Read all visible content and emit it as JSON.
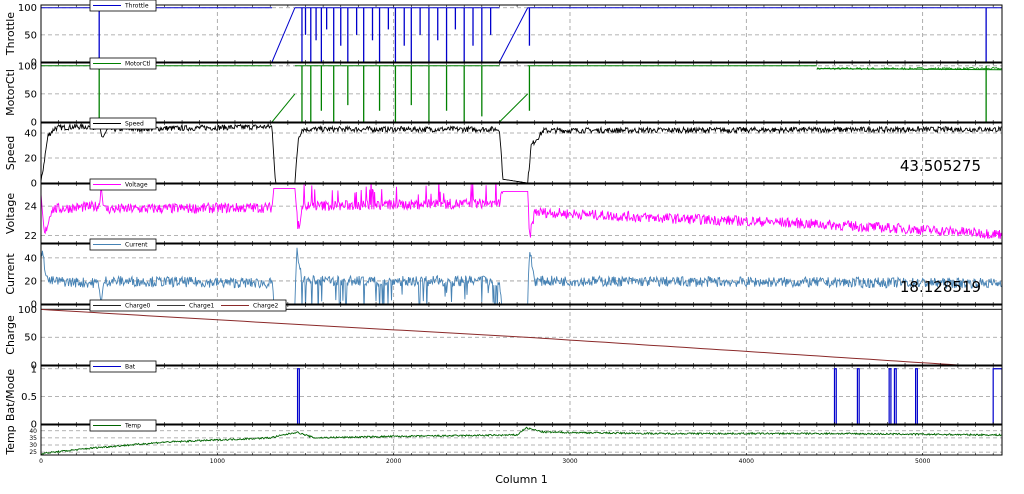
{
  "chart_data": {
    "type": "line",
    "xlabel": "Column 1",
    "xlim": [
      0,
      5450
    ],
    "xticks": [
      0,
      1000,
      2000,
      3000,
      4000,
      5000
    ],
    "xtick_labels": [
      "0",
      "1000",
      "2000",
      "3000",
      "4000",
      "5000"
    ],
    "grid": true,
    "panels": [
      {
        "id": "throttle",
        "ylabel": "Throttle",
        "ylim": [
          0,
          105
        ],
        "yticks": [
          0,
          50,
          100
        ],
        "ytick_labels": [
          "0",
          "50",
          "100"
        ],
        "legend": [
          "Throttle"
        ],
        "legend_position": "top-left",
        "series": [
          {
            "name": "Throttle",
            "color": "#0000cc",
            "baseline": 100,
            "segments": [
              {
                "x": [
                  0,
                  1310
                ],
                "y": [
                  100,
                  100
                ]
              },
              {
                "x": [
                  1310,
                  1440
                ],
                "y": [
                  0,
                  100
                ]
              },
              {
                "x": [
                  1440,
                  2600
                ],
                "y": [
                  100,
                  100
                ]
              },
              {
                "x": [
                  2600,
                  2760
                ],
                "y": [
                  0,
                  100
                ]
              },
              {
                "x": [
                  2760,
                  5450
                ],
                "y": [
                  100,
                  100
                ]
              }
            ],
            "dips": [
              {
                "x": 330,
                "y": 0
              },
              {
                "x": 1480,
                "y": 0
              },
              {
                "x": 1500,
                "y": 50
              },
              {
                "x": 1530,
                "y": 0
              },
              {
                "x": 1560,
                "y": 40
              },
              {
                "x": 1590,
                "y": 0
              },
              {
                "x": 1620,
                "y": 60
              },
              {
                "x": 1660,
                "y": 0
              },
              {
                "x": 1700,
                "y": 30
              },
              {
                "x": 1740,
                "y": 0
              },
              {
                "x": 1790,
                "y": 50
              },
              {
                "x": 1830,
                "y": 0
              },
              {
                "x": 1880,
                "y": 40
              },
              {
                "x": 1920,
                "y": 0
              },
              {
                "x": 1970,
                "y": 60
              },
              {
                "x": 2010,
                "y": 0
              },
              {
                "x": 2060,
                "y": 30
              },
              {
                "x": 2100,
                "y": 0
              },
              {
                "x": 2150,
                "y": 50
              },
              {
                "x": 2200,
                "y": 0
              },
              {
                "x": 2250,
                "y": 40
              },
              {
                "x": 2300,
                "y": 0
              },
              {
                "x": 2350,
                "y": 60
              },
              {
                "x": 2400,
                "y": 0
              },
              {
                "x": 2450,
                "y": 30
              },
              {
                "x": 2500,
                "y": 0
              },
              {
                "x": 2550,
                "y": 50
              },
              {
                "x": 2770,
                "y": 30
              },
              {
                "x": 5360,
                "y": 0
              }
            ]
          }
        ]
      },
      {
        "id": "motorctl",
        "ylabel": "MotorCtl",
        "ylim": [
          0,
          105
        ],
        "yticks": [
          0,
          50,
          100
        ],
        "ytick_labels": [
          "0",
          "50",
          "100"
        ],
        "legend": [
          "MotorCtl"
        ],
        "legend_position": "top-left",
        "series": [
          {
            "name": "MotorCtl",
            "color": "#008000",
            "baseline": 100,
            "segments": [
              {
                "x": [
                  0,
                  1310
                ],
                "y": [
                  100,
                  100
                ]
              },
              {
                "x": [
                  1310,
                  1440
                ],
                "y": [
                  0,
                  50
                ]
              },
              {
                "x": [
                  1440,
                  2600
                ],
                "y": [
                  100,
                  100
                ]
              },
              {
                "x": [
                  2600,
                  2760
                ],
                "y": [
                  0,
                  50
                ]
              },
              {
                "x": [
                  2760,
                  4400
                ],
                "y": [
                  100,
                  100
                ]
              },
              {
                "x": [
                  4400,
                  5450
                ],
                "y": [
                  95,
                  93
                ]
              }
            ],
            "dips": [
              {
                "x": 330,
                "y": 0
              },
              {
                "x": 1480,
                "y": 0
              },
              {
                "x": 1530,
                "y": 0
              },
              {
                "x": 1590,
                "y": 20
              },
              {
                "x": 1660,
                "y": 0
              },
              {
                "x": 1740,
                "y": 30
              },
              {
                "x": 1830,
                "y": 0
              },
              {
                "x": 1920,
                "y": 20
              },
              {
                "x": 2010,
                "y": 0
              },
              {
                "x": 2100,
                "y": 30
              },
              {
                "x": 2200,
                "y": 0
              },
              {
                "x": 2300,
                "y": 20
              },
              {
                "x": 2400,
                "y": 0
              },
              {
                "x": 2500,
                "y": 10
              },
              {
                "x": 2770,
                "y": 20
              },
              {
                "x": 5360,
                "y": 0
              }
            ]
          }
        ]
      },
      {
        "id": "speed",
        "ylabel": "Speed",
        "ylim": [
          0,
          48
        ],
        "yticks": [
          0,
          20,
          40
        ],
        "ytick_labels": [
          "0",
          "20",
          "40"
        ],
        "legend": [
          "Speed"
        ],
        "legend_position": "top-left",
        "annotation": "43.505275",
        "series": [
          {
            "name": "Speed",
            "color": "#000000",
            "baseline": 43,
            "points": [
              [
                0,
                0
              ],
              [
                40,
                38
              ],
              [
                80,
                44
              ],
              [
                200,
                45
              ],
              [
                330,
                45
              ],
              [
                345,
                36
              ],
              [
                380,
                43
              ],
              [
                1310,
                45
              ],
              [
                1330,
                0
              ],
              [
                1440,
                0
              ],
              [
                1460,
                36
              ],
              [
                1480,
                43
              ],
              [
                2600,
                43
              ],
              [
                2620,
                3
              ],
              [
                2760,
                0
              ],
              [
                2780,
                30
              ],
              [
                2850,
                42
              ],
              [
                5450,
                43
              ]
            ]
          }
        ]
      },
      {
        "id": "voltage",
        "ylabel": "Voltage",
        "ylim": [
          21.5,
          25.5
        ],
        "yticks": [
          22,
          24
        ],
        "ytick_labels": [
          "22",
          "24"
        ],
        "legend": [
          "Voltage"
        ],
        "legend_position": "top-left",
        "series": [
          {
            "name": "Voltage",
            "color": "#ff00ff",
            "points": [
              [
                0,
                24.5
              ],
              [
                20,
                22
              ],
              [
                60,
                23.8
              ],
              [
                330,
                24.0
              ],
              [
                340,
                25.3
              ],
              [
                360,
                23.8
              ],
              [
                1310,
                23.9
              ],
              [
                1320,
                25.2
              ],
              [
                1440,
                25.2
              ],
              [
                1460,
                22.2
              ],
              [
                1480,
                24.0
              ],
              [
                2600,
                24.2
              ],
              [
                2620,
                25.0
              ],
              [
                2760,
                25.0
              ],
              [
                2770,
                21.8
              ],
              [
                2800,
                23.6
              ],
              [
                3500,
                23.2
              ],
              [
                4200,
                22.9
              ],
              [
                5000,
                22.4
              ],
              [
                5450,
                22.1
              ]
            ],
            "spikes_range": [
              1460,
              2600
            ],
            "spike_amplitude": 1.2
          }
        ]
      },
      {
        "id": "current",
        "ylabel": "Current",
        "ylim": [
          0,
          52
        ],
        "yticks": [
          0,
          20,
          40
        ],
        "ytick_labels": [
          "0",
          "20",
          "40"
        ],
        "legend": [
          "Current"
        ],
        "legend_position": "top-left",
        "annotation": "18.128519",
        "series": [
          {
            "name": "Current",
            "color": "#4682b4",
            "points": [
              [
                0,
                48
              ],
              [
                40,
                20
              ],
              [
                330,
                18
              ],
              [
                340,
                0
              ],
              [
                360,
                20
              ],
              [
                1310,
                18
              ],
              [
                1320,
                0
              ],
              [
                1440,
                0
              ],
              [
                1450,
                48
              ],
              [
                1480,
                20
              ],
              [
                2600,
                20
              ],
              [
                2610,
                0
              ],
              [
                2760,
                0
              ],
              [
                2770,
                48
              ],
              [
                2800,
                20
              ],
              [
                5450,
                18
              ]
            ],
            "spikes_range": [
              1460,
              2600
            ],
            "spike_amplitude": 20
          }
        ]
      },
      {
        "id": "charge",
        "ylabel": "Charge",
        "ylim": [
          0,
          108
        ],
        "yticks": [
          0,
          50,
          100
        ],
        "ytick_labels": [
          "0",
          "50",
          "100"
        ],
        "legend": [
          "Charge0",
          "Charge1",
          "Charge2"
        ],
        "legend_position": "top-left",
        "series": [
          {
            "name": "Charge0",
            "color": "#1f1f1f",
            "points": [
              [
                0,
                100
              ],
              [
                5450,
                100
              ]
            ]
          },
          {
            "name": "Charge1",
            "color": "#3a3a3a",
            "points": [
              [
                0,
                100
              ],
              [
                5450,
                100
              ]
            ]
          },
          {
            "name": "Charge2",
            "color": "#8b2a2a",
            "points": [
              [
                0,
                100
              ],
              [
                1450,
                73
              ],
              [
                2750,
                50
              ],
              [
                5200,
                0
              ],
              [
                5450,
                0
              ]
            ]
          }
        ]
      },
      {
        "id": "batmode",
        "ylabel": "Bat/Mode",
        "ylim": [
          0,
          1.05
        ],
        "yticks": [
          0,
          0.5,
          1
        ],
        "ytick_labels": [
          "0",
          "0.5",
          "1"
        ],
        "legend": [
          "Bat"
        ],
        "legend_position": "top-left",
        "series": [
          {
            "name": "Bat",
            "color": "#0000cc",
            "pulses": [
              [
                1455,
                1465
              ],
              [
                4500,
                4510
              ],
              [
                4630,
                4640
              ],
              [
                4810,
                4820
              ],
              [
                4840,
                4850
              ],
              [
                4960,
                4970
              ],
              [
                5400,
                5450
              ]
            ]
          }
        ]
      },
      {
        "id": "temp",
        "ylabel": "Temp",
        "ylim": [
          23,
          44
        ],
        "yticks": [
          25,
          30,
          35,
          40
        ],
        "ytick_labels": [
          "25",
          "30",
          "35",
          "40"
        ],
        "legend": [
          "Temp"
        ],
        "legend_position": "top-left",
        "series": [
          {
            "name": "Temp",
            "color": "#006400",
            "points": [
              [
                0,
                24
              ],
              [
                300,
                28
              ],
              [
                700,
                32
              ],
              [
                1300,
                35
              ],
              [
                1450,
                39
              ],
              [
                1550,
                35
              ],
              [
                2000,
                36
              ],
              [
                2700,
                37
              ],
              [
                2750,
                42
              ],
              [
                2850,
                39
              ],
              [
                3500,
                38
              ],
              [
                4500,
                38
              ],
              [
                5450,
                37
              ]
            ]
          }
        ]
      }
    ]
  }
}
